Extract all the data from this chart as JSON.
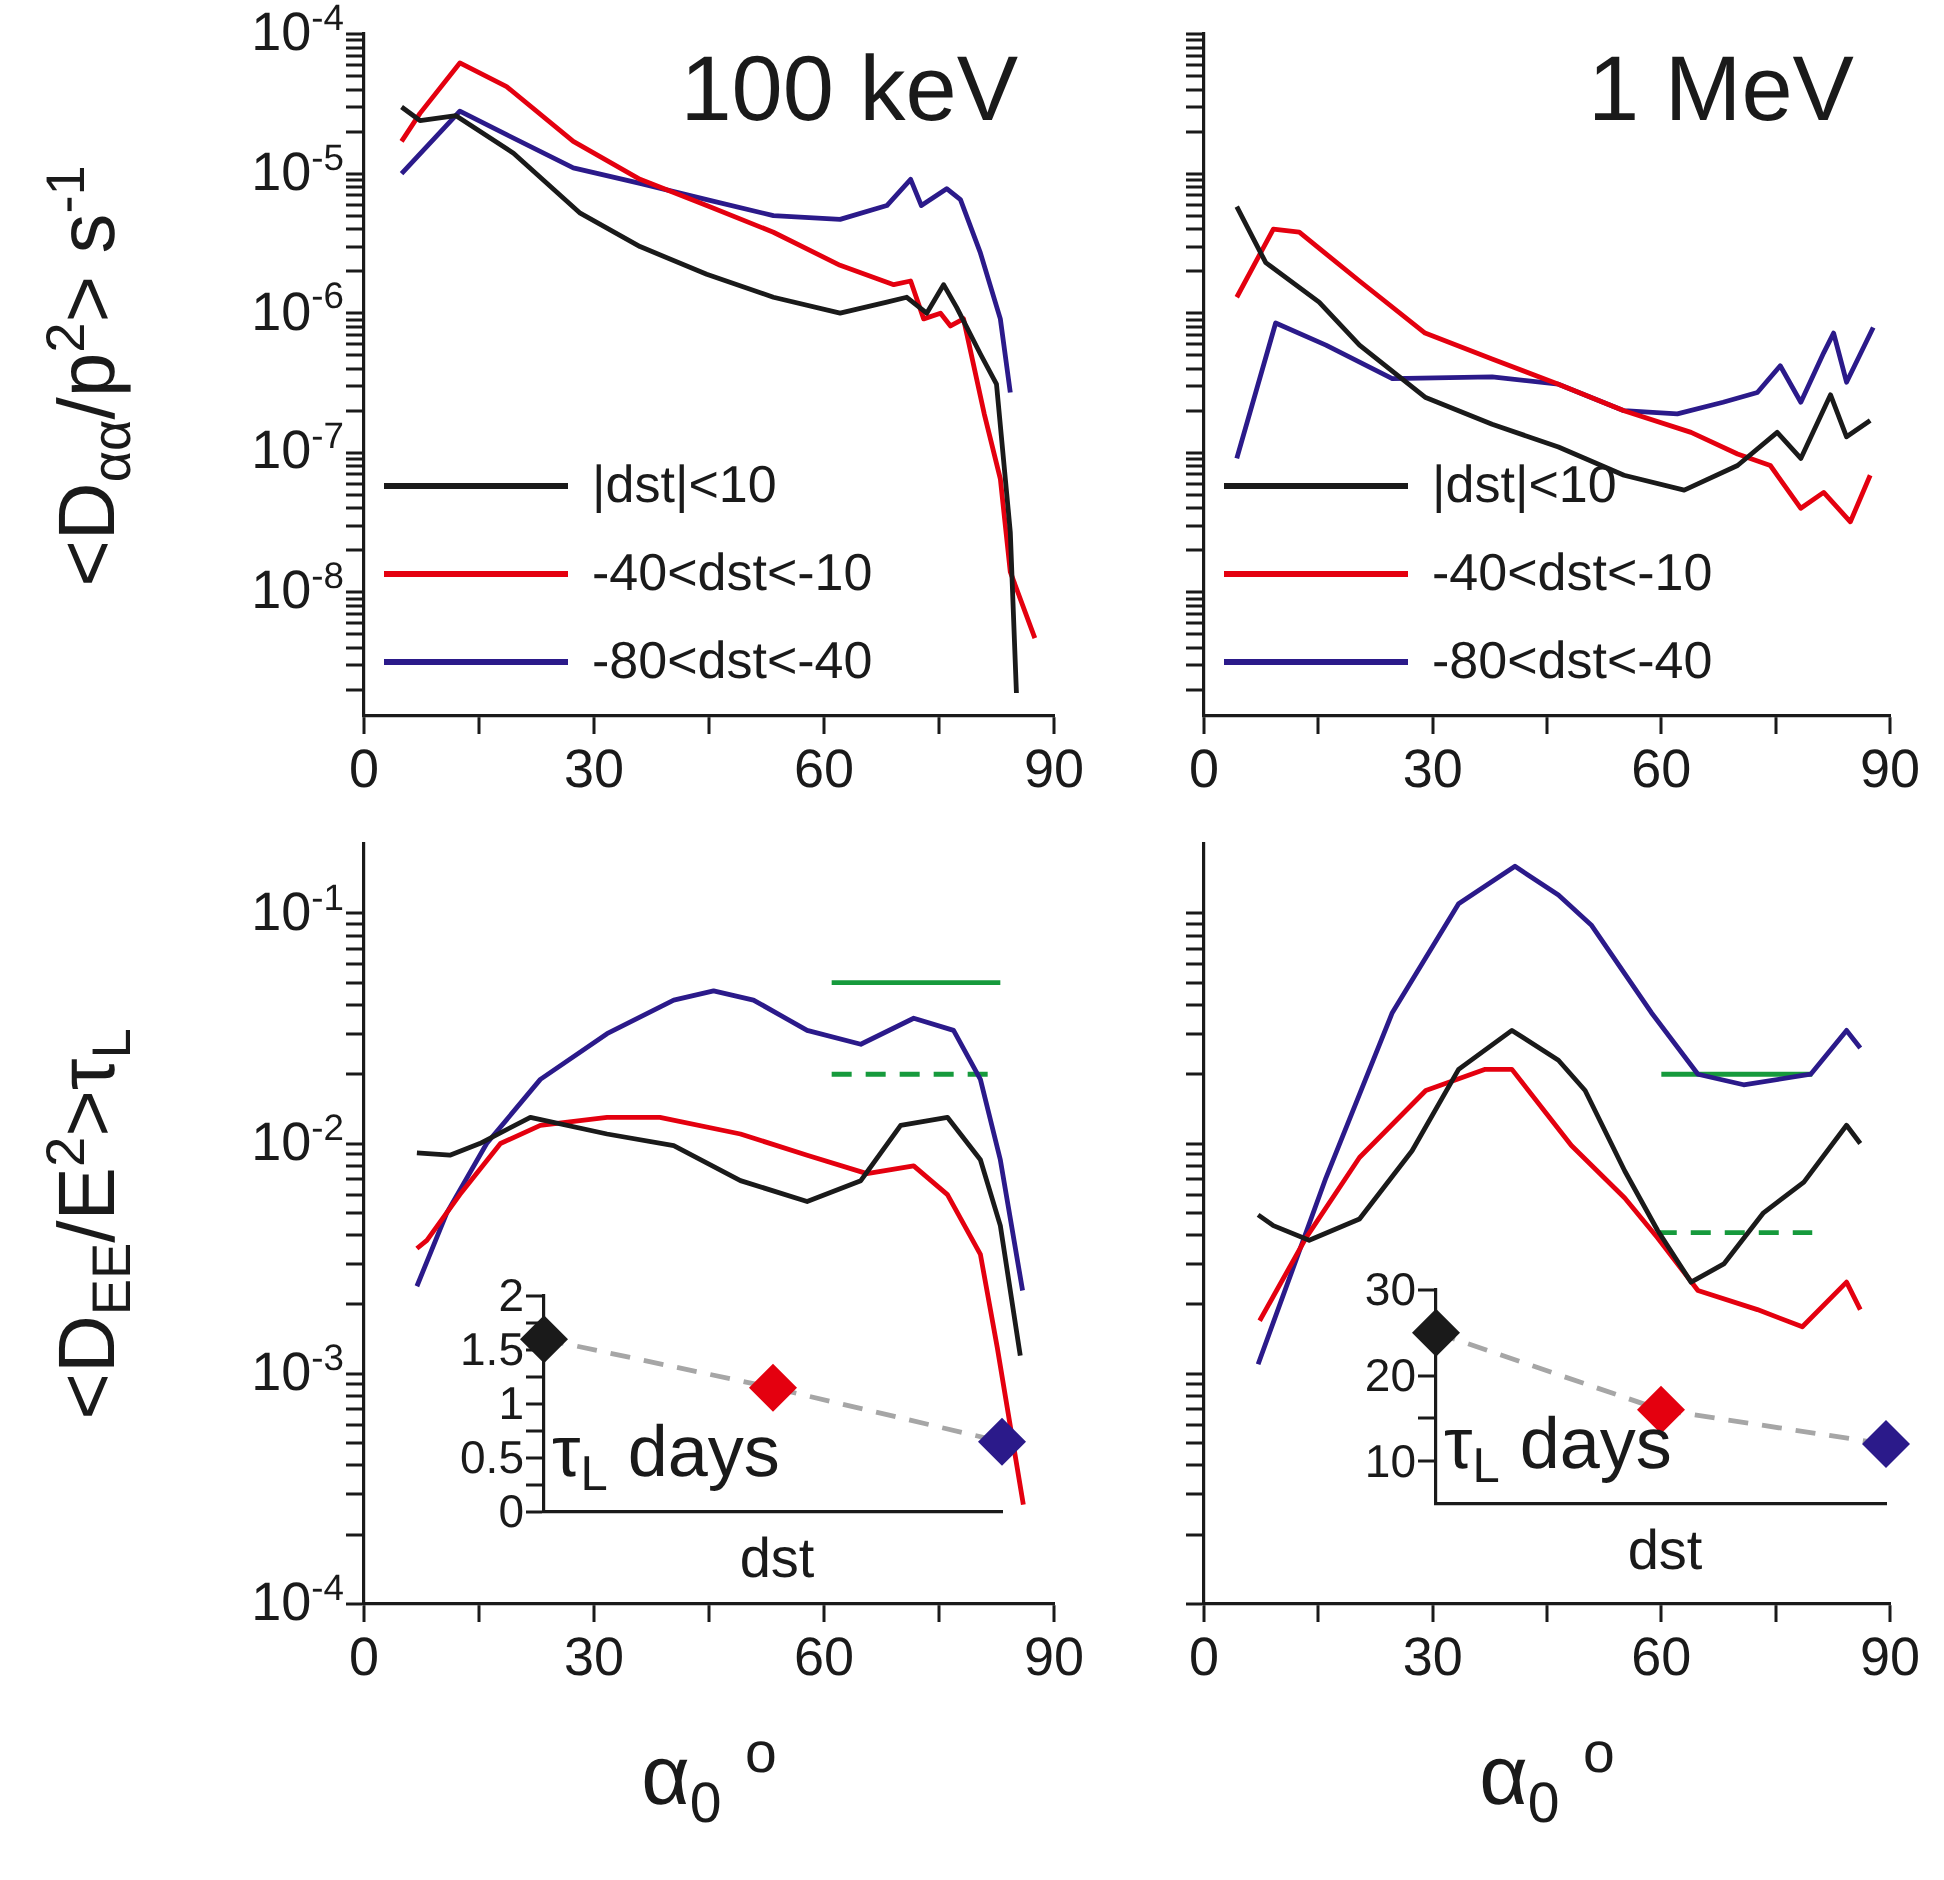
{
  "chart_data": [
    {
      "type": "line",
      "title": "100 keV",
      "ylabel": "<D$_{αα}$/p$^{2}$> s$^{-1}$",
      "xlim": [
        0,
        90
      ],
      "xticks": [
        0,
        {
          "value": 15,
          "label": null
        },
        30,
        {
          "value": 45,
          "label": null
        },
        60,
        {
          "value": 75,
          "label": null
        },
        90
      ],
      "ylim": [
        1.3e-09,
        0.0001
      ],
      "log": "y",
      "legend": "bottom left",
      "yticks": [
        {
          "value": 2e-09,
          "label": null
        },
        {
          "value": 3e-09,
          "label": null
        },
        {
          "value": 4e-09,
          "label": null
        },
        {
          "value": 5e-09,
          "label": null
        },
        {
          "value": 6e-09,
          "label": null
        },
        {
          "value": 7e-09,
          "label": null
        },
        {
          "value": 8e-09,
          "label": null
        },
        {
          "value": 9e-09,
          "label": null
        },
        {
          "value": 1e-08,
          "label": "10$^{-8}$"
        },
        {
          "value": 2e-08,
          "label": null
        },
        {
          "value": 3e-08,
          "label": null
        },
        {
          "value": 4e-08,
          "label": null
        },
        {
          "value": 5e-08,
          "label": null
        },
        {
          "value": 6e-08,
          "label": null
        },
        {
          "value": 7e-08,
          "label": null
        },
        {
          "value": 8e-08,
          "label": null
        },
        {
          "value": 9e-08,
          "label": null
        },
        {
          "value": 1e-07,
          "label": "10$^{-7}$"
        },
        {
          "value": 2e-07,
          "label": null
        },
        {
          "value": 3e-07,
          "label": null
        },
        {
          "value": 4e-07,
          "label": null
        },
        {
          "value": 5e-07,
          "label": null
        },
        {
          "value": 6e-07,
          "label": null
        },
        {
          "value": 7e-07,
          "label": null
        },
        {
          "value": 8e-07,
          "label": null
        },
        {
          "value": 9e-07,
          "label": null
        },
        {
          "value": 1e-06,
          "label": "10$^{-6}$"
        },
        {
          "value": 2e-06,
          "label": null
        },
        {
          "value": 3e-06,
          "label": null
        },
        {
          "value": 4e-06,
          "label": null
        },
        {
          "value": 5e-06,
          "label": null
        },
        {
          "value": 6e-06,
          "label": null
        },
        {
          "value": 7e-06,
          "label": null
        },
        {
          "value": 8e-06,
          "label": null
        },
        {
          "value": 9e-06,
          "label": null
        },
        {
          "value": 1e-05,
          "label": "10$^{-5}$"
        },
        {
          "value": 2e-05,
          "label": null
        },
        {
          "value": 3e-05,
          "label": null
        },
        {
          "value": 4e-05,
          "label": null
        },
        {
          "value": 5e-05,
          "label": null
        },
        {
          "value": 6e-05,
          "label": null
        },
        {
          "value": 7e-05,
          "label": null
        },
        {
          "value": 8e-05,
          "label": null
        },
        {
          "value": 9e-05,
          "label": null
        },
        {
          "value": 0.0001,
          "label": "10$^{-4}$"
        }
      ],
      "series": [
        {
          "name": "|dst|<10",
          "color": "#1a1a1a",
          "x": [
            4.9,
            7.3,
            12,
            19.5,
            28.2,
            36,
            44.7,
            53.4,
            62.1,
            68.2,
            70.8,
            73.4,
            75.6,
            77.3,
            80.4,
            82.5,
            84.3,
            85.1
          ],
          "values": [
            3e-05,
            2.4e-05,
            2.6e-05,
            1.4e-05,
            5.2e-06,
            3e-06,
            1.9e-06,
            1.3e-06,
            1e-06,
            1.2e-06,
            1.3e-06,
            1e-06,
            1.6e-06,
            1.1e-06,
            5.1e-07,
            3.1e-07,
            2.7e-08,
            1.9e-09
          ]
        },
        {
          "name": "-40<dst<-10",
          "color": "#e4000f",
          "x": [
            4.9,
            7.3,
            12.5,
            18.6,
            27.3,
            36,
            44.7,
            53.4,
            62.1,
            69.1,
            71.3,
            73,
            75.2,
            76.5,
            78.2,
            80.9,
            83,
            84.3,
            87.5
          ],
          "values": [
            1.7e-05,
            2.7e-05,
            6.2e-05,
            4.2e-05,
            1.7e-05,
            9.1e-06,
            5.9e-06,
            3.8e-06,
            2.2e-06,
            1.6e-06,
            1.7e-06,
            9.1e-07,
            1e-06,
            8.1e-07,
            9.1e-07,
            1.9e-07,
            6.5e-08,
            1.4e-08,
            4.7e-09
          ]
        },
        {
          "name": "-80<dst<-40",
          "color": "#2b1a8a",
          "x": [
            4.9,
            12.5,
            18.6,
            27.3,
            36,
            44.7,
            53.4,
            62.1,
            68.2,
            71.3,
            72.7,
            76,
            77.8,
            80.4,
            83,
            84.3
          ],
          "values": [
            1e-05,
            2.8e-05,
            1.9e-05,
            1.1e-05,
            8.5e-06,
            6.5e-06,
            5e-06,
            4.7e-06,
            5.9e-06,
            9.1e-06,
            5.9e-06,
            7.8e-06,
            6.5e-06,
            2.7e-06,
            9.1e-07,
            2.7e-07
          ]
        }
      ]
    },
    {
      "type": "line",
      "title": "1 MeV",
      "tick_labels": "x",
      "xlim": [
        0,
        90
      ],
      "xticks": [
        0,
        {
          "value": 15,
          "label": null
        },
        30,
        {
          "value": 45,
          "label": null
        },
        60,
        {
          "value": 75,
          "label": null
        },
        90
      ],
      "ylim": [
        1.3e-09,
        0.0001
      ],
      "log": "y",
      "legend": "bottom left",
      "yticks": [
        {
          "value": 2e-09,
          "label": null
        },
        {
          "value": 3e-09,
          "label": null
        },
        {
          "value": 4e-09,
          "label": null
        },
        {
          "value": 5e-09,
          "label": null
        },
        {
          "value": 6e-09,
          "label": null
        },
        {
          "value": 7e-09,
          "label": null
        },
        {
          "value": 8e-09,
          "label": null
        },
        {
          "value": 9e-09,
          "label": null
        },
        {
          "value": 1e-08,
          "label": null
        },
        {
          "value": 2e-08,
          "label": null
        },
        {
          "value": 3e-08,
          "label": null
        },
        {
          "value": 4e-08,
          "label": null
        },
        {
          "value": 5e-08,
          "label": null
        },
        {
          "value": 6e-08,
          "label": null
        },
        {
          "value": 7e-08,
          "label": null
        },
        {
          "value": 8e-08,
          "label": null
        },
        {
          "value": 9e-08,
          "label": null
        },
        {
          "value": 1e-07,
          "label": null
        },
        {
          "value": 2e-07,
          "label": null
        },
        {
          "value": 3e-07,
          "label": null
        },
        {
          "value": 4e-07,
          "label": null
        },
        {
          "value": 5e-07,
          "label": null
        },
        {
          "value": 6e-07,
          "label": null
        },
        {
          "value": 7e-07,
          "label": null
        },
        {
          "value": 8e-07,
          "label": null
        },
        {
          "value": 9e-07,
          "label": null
        },
        {
          "value": 1e-06,
          "label": null
        },
        {
          "value": 2e-06,
          "label": null
        },
        {
          "value": 3e-06,
          "label": null
        },
        {
          "value": 4e-06,
          "label": null
        },
        {
          "value": 5e-06,
          "label": null
        },
        {
          "value": 6e-06,
          "label": null
        },
        {
          "value": 7e-06,
          "label": null
        },
        {
          "value": 8e-06,
          "label": null
        },
        {
          "value": 9e-06,
          "label": null
        },
        {
          "value": 1e-05,
          "label": null
        },
        {
          "value": 2e-05,
          "label": null
        },
        {
          "value": 3e-05,
          "label": null
        },
        {
          "value": 4e-05,
          "label": null
        },
        {
          "value": 5e-05,
          "label": null
        },
        {
          "value": 6e-05,
          "label": null
        },
        {
          "value": 7e-05,
          "label": null
        },
        {
          "value": 8e-05,
          "label": null
        },
        {
          "value": 9e-05,
          "label": null
        },
        {
          "value": 0.0001,
          "label": null
        }
      ],
      "series": [
        {
          "name": "|dst|<10",
          "color": "#1a1a1a",
          "x": [
            4.3,
            8.1,
            15.1,
            20.4,
            29,
            37.8,
            46.5,
            55.1,
            63,
            70,
            75.2,
            78.3,
            82.2,
            84.3,
            87.4
          ],
          "values": [
            5.8e-06,
            2.3e-06,
            1.2e-06,
            5.9e-07,
            2.5e-07,
            1.6e-07,
            1.1e-07,
            6.9e-08,
            5.4e-08,
            8.1e-08,
            1.4e-07,
            9.1e-08,
            2.6e-07,
            1.3e-07,
            1.7e-07
          ]
        },
        {
          "name": "-40<dst<-10",
          "color": "#e4000f",
          "x": [
            4.3,
            9.1,
            12.5,
            20.4,
            29,
            37.8,
            46.5,
            55.1,
            63.9,
            70,
            74.3,
            78.3,
            81.3,
            84.8,
            87.4
          ],
          "values": [
            1.3e-06,
            4e-06,
            3.8e-06,
            1.7e-06,
            7.2e-07,
            4.7e-07,
            3.1e-07,
            2e-07,
            1.4e-07,
            9.8e-08,
            8.1e-08,
            4e-08,
            5.2e-08,
            3.2e-08,
            6.9e-08
          ]
        },
        {
          "name": "-80<dst<-40",
          "color": "#2b1a8a",
          "x": [
            4.3,
            9.4,
            16,
            24.7,
            37.8,
            46.5,
            55.1,
            62.1,
            68.1,
            72.6,
            75.6,
            78.3,
            81.3,
            82.6,
            84.3,
            87.8
          ],
          "values": [
            9.1e-08,
            8.5e-07,
            5.9e-07,
            3.4e-07,
            3.5e-07,
            3.1e-07,
            2e-07,
            1.9e-07,
            2.3e-07,
            2.7e-07,
            4.2e-07,
            2.3e-07,
            5.2e-07,
            7.2e-07,
            3.2e-07,
            7.9e-07
          ]
        }
      ]
    },
    {
      "type": "line",
      "ylabel": "<D$_{EE}$/E$^{2}$>τ$_{L}$",
      "xlabel": "α$_{0}$ $^{o}$",
      "xlim": [
        0,
        90
      ],
      "xticks": [
        0,
        {
          "value": 15,
          "label": null
        },
        30,
        {
          "value": 45,
          "label": null
        },
        60,
        {
          "value": 75,
          "label": null
        },
        90
      ],
      "ylim": [
        0.0001,
        0.2
      ],
      "log": "y",
      "yticks": [
        {
          "value": 0.0001,
          "label": "10$^{-4}$"
        },
        {
          "value": 0.0002,
          "label": null
        },
        {
          "value": 0.0003,
          "label": null
        },
        {
          "value": 0.0004,
          "label": null
        },
        {
          "value": 0.0005,
          "label": null
        },
        {
          "value": 0.0006,
          "label": null
        },
        {
          "value": 0.0007,
          "label": null
        },
        {
          "value": 0.0008,
          "label": null
        },
        {
          "value": 0.0009,
          "label": null
        },
        {
          "value": 0.001,
          "label": "10$^{-3}$"
        },
        {
          "value": 0.002,
          "label": null
        },
        {
          "value": 0.003,
          "label": null
        },
        {
          "value": 0.004,
          "label": null
        },
        {
          "value": 0.005,
          "label": null
        },
        {
          "value": 0.006,
          "label": null
        },
        {
          "value": 0.007,
          "label": null
        },
        {
          "value": 0.008,
          "label": null
        },
        {
          "value": 0.009,
          "label": null
        },
        {
          "value": 0.01,
          "label": "10$^{-2}$"
        },
        {
          "value": 0.02,
          "label": null
        },
        {
          "value": 0.03,
          "label": null
        },
        {
          "value": 0.04,
          "label": null
        },
        {
          "value": 0.05,
          "label": null
        },
        {
          "value": 0.06,
          "label": null
        },
        {
          "value": 0.07,
          "label": null
        },
        {
          "value": 0.08,
          "label": null
        },
        {
          "value": 0.09,
          "label": null
        },
        {
          "value": 0.1,
          "label": "10$^{-1}$"
        }
      ],
      "series": [
        {
          "color": "#1a1a1a",
          "x": [
            6.9,
            11.2,
            15.1,
            21.7,
            31.7,
            40.4,
            49.1,
            57.8,
            64.8,
            70,
            76.1,
            80.4,
            83,
            85.6
          ],
          "values": [
            0.0091,
            0.0089,
            0.01,
            0.013,
            0.011,
            0.0098,
            0.0069,
            0.0056,
            0.0069,
            0.012,
            0.013,
            0.0085,
            0.0044,
            0.0012
          ]
        },
        {
          "color": "#e4000f",
          "x": [
            6.9,
            8.2,
            12.5,
            17.8,
            23,
            31.7,
            38.6,
            49.1,
            57.8,
            65.6,
            71.7,
            76.1,
            80.4,
            82.6,
            86
          ],
          "values": [
            0.0035,
            0.0038,
            0.006,
            0.01,
            0.012,
            0.013,
            0.013,
            0.011,
            0.0089,
            0.0074,
            0.008,
            0.006,
            0.0033,
            0.0013,
            0.00027
          ]
        },
        {
          "color": "#2b1a8a",
          "x": [
            6.9,
            10.8,
            16,
            23,
            31.7,
            40.4,
            45.6,
            50.8,
            57.8,
            64.8,
            71.7,
            76.9,
            80.4,
            83,
            85.9
          ],
          "values": [
            0.0024,
            0.005,
            0.01,
            0.019,
            0.03,
            0.042,
            0.046,
            0.042,
            0.031,
            0.027,
            0.035,
            0.031,
            0.019,
            0.0085,
            0.0023
          ]
        },
        {
          "color": "#169a3c",
          "x": [
            61,
            83
          ],
          "values": [
            0.05,
            0.05
          ]
        },
        {
          "color": "#169a3c",
          "line_style": "dashed",
          "x": [
            61,
            82
          ],
          "values": [
            0.02,
            0.02
          ]
        }
      ]
    },
    {
      "type": "line",
      "xlabel": "α$_{0}$ $^{o}$",
      "tick_labels": "x",
      "xlim": [
        0,
        90
      ],
      "xticks": [
        0,
        {
          "value": 15,
          "label": null
        },
        30,
        {
          "value": 45,
          "label": null
        },
        60,
        {
          "value": 75,
          "label": null
        },
        90
      ],
      "ylim": [
        0.0001,
        0.2
      ],
      "log": "y",
      "yticks": [
        {
          "value": 0.0001,
          "label": null
        },
        {
          "value": 0.0002,
          "label": null
        },
        {
          "value": 0.0003,
          "label": null
        },
        {
          "value": 0.0004,
          "label": null
        },
        {
          "value": 0.0005,
          "label": null
        },
        {
          "value": 0.0006,
          "label": null
        },
        {
          "value": 0.0007,
          "label": null
        },
        {
          "value": 0.0008,
          "label": null
        },
        {
          "value": 0.0009,
          "label": null
        },
        {
          "value": 0.001,
          "label": null
        },
        {
          "value": 0.002,
          "label": null
        },
        {
          "value": 0.003,
          "label": null
        },
        {
          "value": 0.004,
          "label": null
        },
        {
          "value": 0.005,
          "label": null
        },
        {
          "value": 0.006,
          "label": null
        },
        {
          "value": 0.007,
          "label": null
        },
        {
          "value": 0.008,
          "label": null
        },
        {
          "value": 0.009,
          "label": null
        },
        {
          "value": 0.01,
          "label": null
        },
        {
          "value": 0.02,
          "label": null
        },
        {
          "value": 0.03,
          "label": null
        },
        {
          "value": 0.04,
          "label": null
        },
        {
          "value": 0.05,
          "label": null
        },
        {
          "value": 0.06,
          "label": null
        },
        {
          "value": 0.07,
          "label": null
        },
        {
          "value": 0.08,
          "label": null
        },
        {
          "value": 0.09,
          "label": null
        },
        {
          "value": 0.1,
          "label": null
        }
      ],
      "series": [
        {
          "color": "#1a1a1a",
          "x": [
            7.1,
            9.1,
            13.8,
            20.4,
            27.3,
            33.4,
            40.4,
            46.5,
            50,
            55.2,
            59.5,
            63.9,
            68.2,
            73.4,
            78.7,
            84.3,
            86.1
          ],
          "values": [
            0.0049,
            0.0044,
            0.0038,
            0.0047,
            0.0093,
            0.021,
            0.031,
            0.023,
            0.017,
            0.0076,
            0.0042,
            0.0025,
            0.003,
            0.005,
            0.0068,
            0.012,
            0.01
          ]
        },
        {
          "color": "#e4000f",
          "x": [
            7.3,
            13.4,
            20.4,
            29.1,
            36.9,
            40.4,
            48.2,
            55.2,
            59.5,
            64.8,
            72.6,
            78.5,
            84.3,
            86.1
          ],
          "values": [
            0.0017,
            0.0039,
            0.0087,
            0.017,
            0.021,
            0.021,
            0.0098,
            0.0058,
            0.0039,
            0.0023,
            0.0019,
            0.0016,
            0.0025,
            0.0019
          ]
        },
        {
          "color": "#2b1a8a",
          "x": [
            7.1,
            16,
            24.7,
            33.4,
            40.8,
            46.5,
            50.8,
            58.7,
            64.8,
            70.8,
            79.6,
            84.3,
            86.1
          ],
          "values": [
            0.0011,
            0.0071,
            0.037,
            0.11,
            0.16,
            0.12,
            0.089,
            0.037,
            0.02,
            0.018,
            0.02,
            0.031,
            0.026
          ]
        },
        {
          "color": "#169a3c",
          "x": [
            60,
            79.8
          ],
          "values": [
            0.02,
            0.02
          ]
        },
        {
          "color": "#169a3c",
          "line_style": "dashed",
          "x": [
            59.4,
            79.8
          ],
          "values": [
            0.0041,
            0.0041
          ]
        }
      ]
    },
    {
      "type": "line",
      "categories": [
        null,
        null,
        null
      ],
      "xlabel": "dst",
      "tick_labels": "y",
      "ylim": [
        0,
        2
      ],
      "yticks": [
        0,
        {
          "value": 0.25,
          "label": null
        },
        0.5,
        {
          "value": 0.75,
          "label": null
        },
        1,
        {
          "value": 1.25,
          "label": null
        },
        1.5,
        {
          "value": 1.75,
          "label": null
        },
        2
      ],
      "annotations": [
        "τ$_{L}$ days"
      ],
      "series": [
        {
          "color": "#a6a6a6",
          "line_style": "dashed",
          "marker": "none",
          "values": [
            1.6,
            1.15,
            0.65
          ]
        },
        {
          "type": "scatter",
          "marker": "diamond",
          "colors": [
            "#1a1a1a",
            "#e4000f",
            "#2b1a8a"
          ],
          "values": [
            1.6,
            1.15,
            0.65
          ]
        }
      ]
    },
    {
      "type": "line",
      "categories": [
        null,
        null,
        null
      ],
      "xlabel": "dst",
      "tick_labels": "y",
      "ylim": [
        5,
        30
      ],
      "yticks": [
        10,
        {
          "value": 15,
          "label": null
        },
        20,
        {
          "value": 25,
          "label": null
        },
        30
      ],
      "annotations": [
        "τ$_{L}$ days"
      ],
      "series": [
        {
          "color": "#a6a6a6",
          "line_style": "dashed",
          "marker": "none",
          "values": [
            25,
            16,
            12
          ]
        },
        {
          "type": "scatter",
          "marker": "diamond",
          "colors": [
            "#1a1a1a",
            "#e4000f",
            "#2b1a8a"
          ],
          "values": [
            25,
            16,
            12
          ]
        }
      ]
    }
  ]
}
